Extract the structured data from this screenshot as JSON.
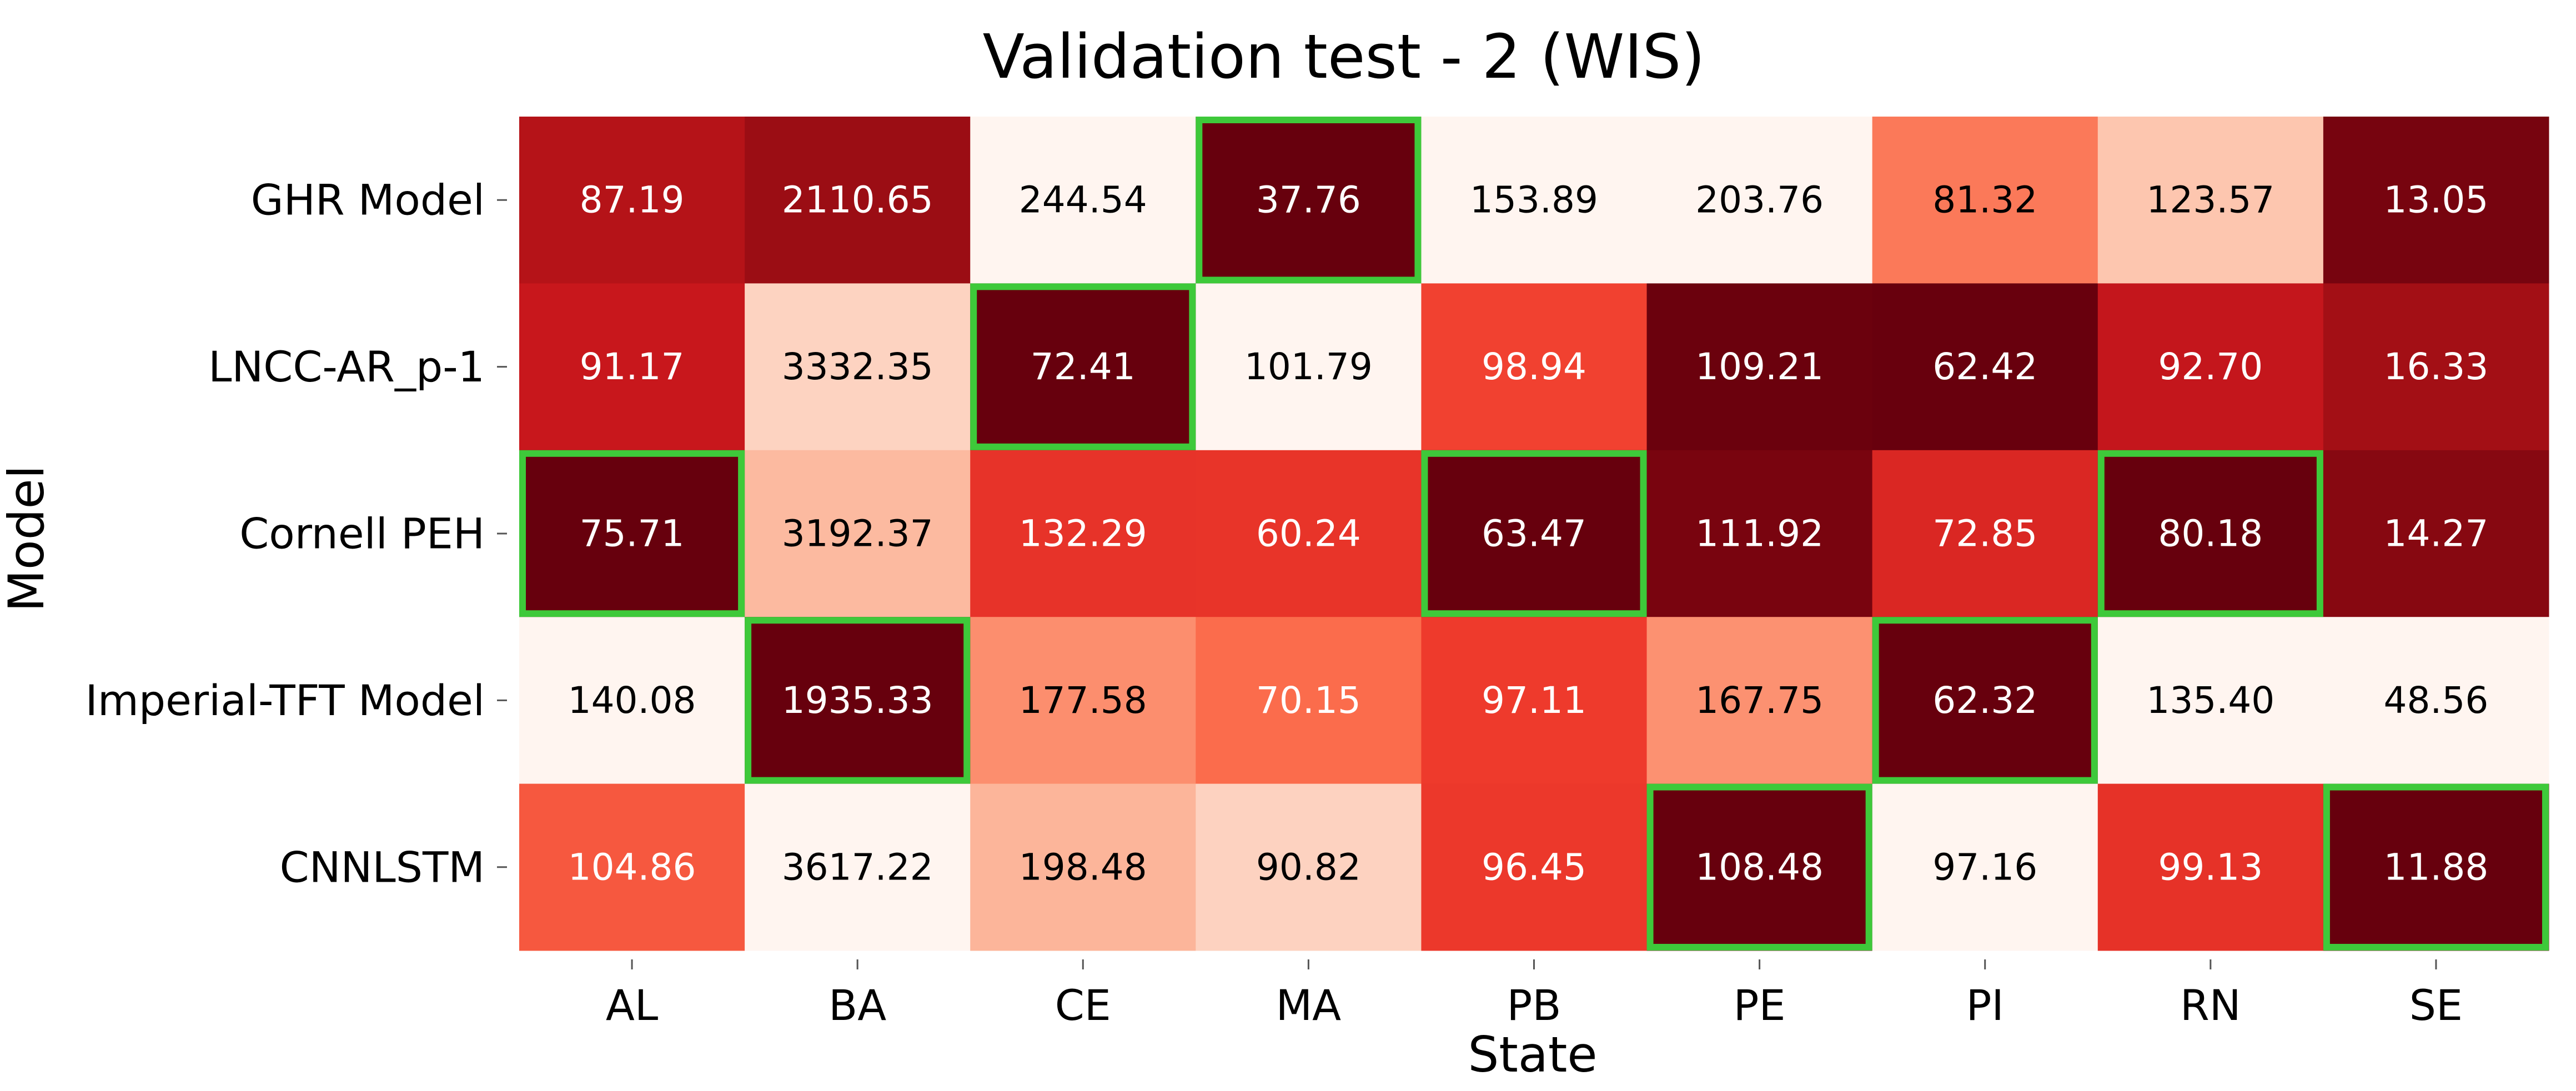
{
  "chart_data": {
    "type": "heatmap",
    "title": "Validation test - 2 (WIS)",
    "xlabel": "State",
    "ylabel": "Model",
    "x_categories": [
      "AL",
      "BA",
      "CE",
      "MA",
      "PB",
      "PE",
      "PI",
      "RN",
      "SE"
    ],
    "y_categories": [
      "GHR Model",
      "LNCC-AR_p-1",
      "Cornell PEH",
      "Imperial-TFT Model",
      "CNNLSTM"
    ],
    "values": [
      [
        87.19,
        2110.65,
        244.54,
        37.76,
        153.89,
        203.76,
        81.32,
        123.57,
        13.05
      ],
      [
        91.17,
        3332.35,
        72.41,
        101.79,
        98.94,
        109.21,
        62.42,
        92.7,
        16.33
      ],
      [
        75.71,
        3192.37,
        132.29,
        60.24,
        63.47,
        111.92,
        72.85,
        80.18,
        14.27
      ],
      [
        140.08,
        1935.33,
        177.58,
        70.15,
        97.11,
        167.75,
        62.32,
        135.4,
        48.56
      ],
      [
        104.86,
        3617.22,
        198.48,
        90.82,
        96.45,
        108.48,
        97.16,
        99.13,
        11.88
      ]
    ],
    "value_labels": [
      [
        "87.19",
        "2110.65",
        "244.54",
        "37.76",
        "153.89",
        "203.76",
        "81.32",
        "123.57",
        "13.05"
      ],
      [
        "91.17",
        "3332.35",
        "72.41",
        "101.79",
        "98.94",
        "109.21",
        "62.42",
        "92.70",
        "16.33"
      ],
      [
        "75.71",
        "3192.37",
        "132.29",
        "60.24",
        "63.47",
        "111.92",
        "72.85",
        "80.18",
        "14.27"
      ],
      [
        "140.08",
        "1935.33",
        "177.58",
        "70.15",
        "97.11",
        "167.75",
        "62.32",
        "135.40",
        "48.56"
      ],
      [
        "104.86",
        "3617.22",
        "198.48",
        "90.82",
        "96.45",
        "108.48",
        "97.16",
        "99.13",
        "11.88"
      ]
    ],
    "colormap": "Reds",
    "color_scale": "per-column, reversed (lowest value darkest)",
    "highlight": "minimum value in each column outlined",
    "highlight_color": "#3ec93a",
    "colorbar": false,
    "grid": false
  }
}
